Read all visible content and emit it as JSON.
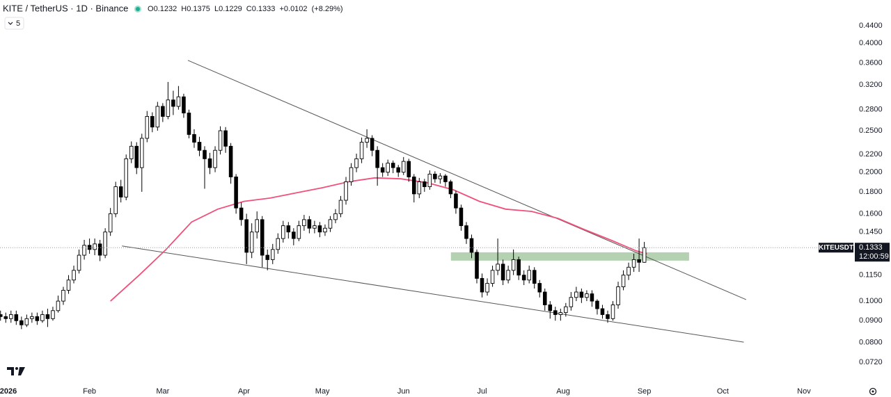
{
  "chart_data": {
    "type": "candlestick",
    "title": "KITE / TetherUS · 1D · Binance",
    "ohlc_labels": [
      "O",
      "H",
      "L",
      "C"
    ],
    "change": {
      "value": 0.0102,
      "label": "+0.0102"
    },
    "change_percent": {
      "value": 8.29,
      "label": "(+8.29%)"
    },
    "indicator_count": 5,
    "symbol_tag": "KITEUSDT",
    "countdown": "12:00:59",
    "log_scale": true,
    "up_color": "#ffffff",
    "down_color": "#000000",
    "x": [
      -3,
      -1,
      1,
      3,
      5,
      7,
      9,
      11,
      13,
      15,
      17,
      19,
      21,
      23,
      25,
      27,
      29,
      31,
      33,
      35,
      37,
      39,
      41,
      43,
      45,
      47,
      49,
      51,
      53,
      55,
      57,
      59,
      61,
      63,
      65,
      67,
      69,
      71,
      73,
      75,
      77,
      79,
      81,
      83,
      85,
      87,
      89,
      91,
      93,
      95,
      97,
      99,
      101,
      103,
      105,
      107,
      109,
      111,
      113,
      115,
      117,
      119,
      121,
      123,
      125,
      127,
      129,
      131,
      133,
      135,
      137,
      139,
      141,
      143,
      145,
      147,
      149,
      151,
      153,
      155,
      157,
      159,
      161,
      163,
      165,
      167,
      169,
      171,
      173,
      175,
      177,
      179,
      181,
      183,
      185,
      187,
      189,
      191,
      193,
      195,
      197,
      199,
      201,
      203,
      205,
      207,
      209,
      211,
      213,
      215,
      217,
      219,
      221,
      223,
      225,
      227,
      229,
      231,
      233,
      235,
      237,
      239,
      241,
      243
    ],
    "open": [
      0.093,
      0.092,
      0.091,
      0.093,
      0.09,
      0.088,
      0.091,
      0.092,
      0.09,
      0.093,
      0.091,
      0.095,
      0.1,
      0.106,
      0.112,
      0.118,
      0.128,
      0.135,
      0.132,
      0.136,
      0.128,
      0.145,
      0.16,
      0.185,
      0.175,
      0.215,
      0.23,
      0.205,
      0.24,
      0.27,
      0.255,
      0.285,
      0.27,
      0.295,
      0.285,
      0.3,
      0.275,
      0.245,
      0.235,
      0.225,
      0.215,
      0.205,
      0.225,
      0.25,
      0.23,
      0.195,
      0.165,
      0.155,
      0.13,
      0.145,
      0.155,
      0.128,
      0.125,
      0.132,
      0.14,
      0.15,
      0.145,
      0.14,
      0.15,
      0.155,
      0.148,
      0.15,
      0.145,
      0.148,
      0.155,
      0.16,
      0.172,
      0.19,
      0.205,
      0.215,
      0.235,
      0.24,
      0.225,
      0.205,
      0.2,
      0.21,
      0.205,
      0.2,
      0.212,
      0.195,
      0.178,
      0.19,
      0.185,
      0.198,
      0.193,
      0.196,
      0.19,
      0.178,
      0.165,
      0.15,
      0.14,
      0.13,
      0.113,
      0.105,
      0.11,
      0.118,
      0.122,
      0.112,
      0.118,
      0.125,
      0.115,
      0.112,
      0.118,
      0.11,
      0.105,
      0.098,
      0.095,
      0.093,
      0.094,
      0.097,
      0.102,
      0.105,
      0.102,
      0.104,
      0.1,
      0.096,
      0.093,
      0.091,
      0.098,
      0.108,
      0.115,
      0.12,
      0.125,
      0.1232
    ],
    "high": [
      0.095,
      0.094,
      0.095,
      0.095,
      0.092,
      0.093,
      0.094,
      0.094,
      0.095,
      0.096,
      0.097,
      0.103,
      0.108,
      0.115,
      0.121,
      0.132,
      0.139,
      0.14,
      0.14,
      0.139,
      0.148,
      0.165,
      0.19,
      0.192,
      0.22,
      0.236,
      0.235,
      0.246,
      0.278,
      0.276,
      0.292,
      0.29,
      0.325,
      0.31,
      0.318,
      0.305,
      0.28,
      0.252,
      0.242,
      0.23,
      0.222,
      0.23,
      0.256,
      0.255,
      0.234,
      0.198,
      0.17,
      0.16,
      0.152,
      0.162,
      0.158,
      0.132,
      0.136,
      0.144,
      0.154,
      0.153,
      0.148,
      0.154,
      0.159,
      0.158,
      0.154,
      0.153,
      0.151,
      0.158,
      0.164,
      0.176,
      0.195,
      0.21,
      0.221,
      0.241,
      0.252,
      0.244,
      0.23,
      0.21,
      0.214,
      0.213,
      0.208,
      0.217,
      0.215,
      0.198,
      0.194,
      0.193,
      0.202,
      0.201,
      0.199,
      0.198,
      0.192,
      0.181,
      0.168,
      0.153,
      0.143,
      0.132,
      0.116,
      0.113,
      0.121,
      0.14,
      0.125,
      0.121,
      0.132,
      0.127,
      0.118,
      0.121,
      0.12,
      0.112,
      0.107,
      0.1,
      0.097,
      0.096,
      0.099,
      0.105,
      0.108,
      0.107,
      0.106,
      0.106,
      0.101,
      0.098,
      0.095,
      0.1,
      0.111,
      0.118,
      0.123,
      0.129,
      0.14,
      0.1375
    ],
    "low": [
      0.09,
      0.089,
      0.089,
      0.088,
      0.086,
      0.087,
      0.089,
      0.088,
      0.089,
      0.087,
      0.09,
      0.094,
      0.098,
      0.104,
      0.11,
      0.116,
      0.125,
      0.129,
      0.128,
      0.124,
      0.126,
      0.142,
      0.157,
      0.17,
      0.172,
      0.21,
      0.198,
      0.18,
      0.235,
      0.248,
      0.25,
      0.262,
      0.266,
      0.272,
      0.28,
      0.268,
      0.24,
      0.228,
      0.218,
      0.183,
      0.198,
      0.2,
      0.22,
      0.222,
      0.188,
      0.16,
      0.15,
      0.122,
      0.126,
      0.14,
      0.12,
      0.118,
      0.122,
      0.129,
      0.137,
      0.14,
      0.135,
      0.138,
      0.146,
      0.144,
      0.144,
      0.141,
      0.142,
      0.145,
      0.152,
      0.157,
      0.168,
      0.186,
      0.2,
      0.21,
      0.228,
      0.218,
      0.186,
      0.195,
      0.196,
      0.199,
      0.195,
      0.197,
      0.19,
      0.17,
      0.174,
      0.18,
      0.182,
      0.189,
      0.188,
      0.185,
      0.174,
      0.16,
      0.146,
      0.136,
      0.126,
      0.11,
      0.102,
      0.103,
      0.108,
      0.115,
      0.109,
      0.11,
      0.115,
      0.112,
      0.109,
      0.11,
      0.107,
      0.102,
      0.095,
      0.091,
      0.09,
      0.09,
      0.092,
      0.095,
      0.1,
      0.099,
      0.1,
      0.097,
      0.093,
      0.091,
      0.089,
      0.09,
      0.096,
      0.106,
      0.112,
      0.117,
      0.117,
      0.1229
    ],
    "close": [
      0.092,
      0.091,
      0.093,
      0.09,
      0.088,
      0.091,
      0.092,
      0.09,
      0.093,
      0.091,
      0.095,
      0.1,
      0.106,
      0.112,
      0.118,
      0.128,
      0.135,
      0.132,
      0.136,
      0.128,
      0.145,
      0.16,
      0.185,
      0.175,
      0.215,
      0.23,
      0.205,
      0.24,
      0.27,
      0.255,
      0.285,
      0.27,
      0.295,
      0.285,
      0.3,
      0.275,
      0.245,
      0.235,
      0.225,
      0.215,
      0.205,
      0.225,
      0.25,
      0.23,
      0.195,
      0.165,
      0.155,
      0.13,
      0.145,
      0.155,
      0.128,
      0.125,
      0.132,
      0.14,
      0.15,
      0.145,
      0.14,
      0.15,
      0.155,
      0.148,
      0.15,
      0.145,
      0.148,
      0.155,
      0.16,
      0.172,
      0.19,
      0.205,
      0.215,
      0.235,
      0.24,
      0.225,
      0.205,
      0.2,
      0.21,
      0.205,
      0.2,
      0.212,
      0.195,
      0.178,
      0.19,
      0.185,
      0.198,
      0.193,
      0.196,
      0.19,
      0.178,
      0.165,
      0.15,
      0.14,
      0.13,
      0.113,
      0.105,
      0.11,
      0.118,
      0.122,
      0.112,
      0.118,
      0.125,
      0.115,
      0.112,
      0.118,
      0.11,
      0.105,
      0.098,
      0.095,
      0.093,
      0.094,
      0.097,
      0.102,
      0.105,
      0.102,
      0.104,
      0.1,
      0.096,
      0.093,
      0.091,
      0.098,
      0.108,
      0.115,
      0.12,
      0.125,
      0.1232,
      0.1333
    ],
    "ma": {
      "color": "#f0507a",
      "x": [
        39,
        50,
        60,
        70,
        80,
        90,
        100,
        110,
        120,
        130,
        140,
        150,
        160,
        170,
        180,
        190,
        200,
        210,
        220,
        230,
        240,
        244
      ],
      "values": [
        0.1,
        0.115,
        0.1315,
        0.153,
        0.164,
        0.171,
        0.174,
        0.179,
        0.184,
        0.19,
        0.194,
        0.193,
        0.189,
        0.182,
        0.171,
        0.164,
        0.162,
        0.156,
        0.147,
        0.139,
        0.131,
        0.129
      ]
    },
    "trendlines": [
      {
        "x": [
          68.6,
          281.9
        ],
        "y": [
          0.365,
          0.1008
        ],
        "color": "#555555"
      },
      {
        "x": [
          43.4,
          281.0
        ],
        "y": [
          0.1345,
          0.0802
        ],
        "color": "#555555"
      }
    ],
    "zone": {
      "x": [
        169.1,
        260.1
      ],
      "y": [
        0.1243,
        0.13
      ],
      "color": "#a7c9a3"
    },
    "xlim": [
      -3.2,
      321.3
    ],
    "ylim": [
      0.0658,
      0.505
    ],
    "xticks": [
      {
        "value": 0,
        "label": "2026"
      },
      {
        "value": 31,
        "label": "Feb"
      },
      {
        "value": 59,
        "label": "Mar"
      },
      {
        "value": 90,
        "label": "Apr"
      },
      {
        "value": 120,
        "label": "May"
      },
      {
        "value": 151,
        "label": "Jun"
      },
      {
        "value": 181,
        "label": "Jul"
      },
      {
        "value": 212,
        "label": "Aug"
      },
      {
        "value": 243,
        "label": "Sep"
      },
      {
        "value": 273,
        "label": "Oct"
      },
      {
        "value": 304,
        "label": "Nov"
      }
    ],
    "yticks": [
      {
        "value": 0.44,
        "label": "0.4400"
      },
      {
        "value": 0.4,
        "label": "0.4000"
      },
      {
        "value": 0.36,
        "label": "0.3600"
      },
      {
        "value": 0.32,
        "label": "0.3200"
      },
      {
        "value": 0.28,
        "label": "0.2800"
      },
      {
        "value": 0.25,
        "label": "0.2500"
      },
      {
        "value": 0.22,
        "label": "0.2200"
      },
      {
        "value": 0.2,
        "label": "0.2000"
      },
      {
        "value": 0.18,
        "label": "0.1800"
      },
      {
        "value": 0.16,
        "label": "0.1600"
      },
      {
        "value": 0.145,
        "label": "0.1450"
      },
      {
        "value": 0.115,
        "label": "0.1150"
      },
      {
        "value": 0.1,
        "label": "0.1000"
      },
      {
        "value": 0.09,
        "label": "0.0900"
      },
      {
        "value": 0.08,
        "label": "0.0800"
      },
      {
        "value": 0.072,
        "label": "0.0720"
      }
    ]
  }
}
